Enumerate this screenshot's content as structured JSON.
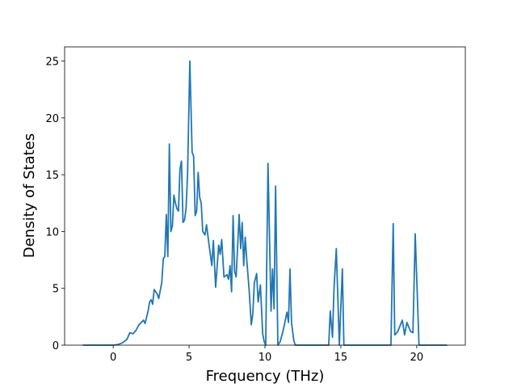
{
  "chart_data": {
    "type": "line",
    "x_label": "Frequency (THz)",
    "y_label": "Density of States",
    "x": [
      -2,
      0,
      0.3,
      0.6,
      0.9,
      1.1,
      1.3,
      1.5,
      1.7,
      2.0,
      2.1,
      2.3,
      2.4,
      2.5,
      2.6,
      2.7,
      2.9,
      3.0,
      3.2,
      3.3,
      3.4,
      3.5,
      3.6,
      3.7,
      3.8,
      3.9,
      4.0,
      4.1,
      4.2,
      4.3,
      4.4,
      4.5,
      4.6,
      4.7,
      4.8,
      4.9,
      5.05,
      5.2,
      5.3,
      5.4,
      5.5,
      5.6,
      5.7,
      5.8,
      5.9,
      6.05,
      6.15,
      6.3,
      6.5,
      6.6,
      6.75,
      6.95,
      7.05,
      7.15,
      7.3,
      7.5,
      7.6,
      7.7,
      7.8,
      7.9,
      8.0,
      8.1,
      8.3,
      8.4,
      8.5,
      8.6,
      8.7,
      8.8,
      8.95,
      9.1,
      9.2,
      9.3,
      9.45,
      9.55,
      9.7,
      9.85,
      9.95,
      10.05,
      10.2,
      10.4,
      10.5,
      10.6,
      10.7,
      10.85,
      11.0,
      11.2,
      11.45,
      11.55,
      11.65,
      11.75,
      11.9,
      12.0,
      14.2,
      14.3,
      14.45,
      14.55,
      14.7,
      14.9,
      15.1,
      15.2,
      18.3,
      18.45,
      18.55,
      18.75,
      19.05,
      19.2,
      19.35,
      19.6,
      19.75,
      19.9,
      20.15,
      22
    ],
    "values": [
      0,
      0,
      0.05,
      0.2,
      0.5,
      1.1,
      1.0,
      1.3,
      1.8,
      2.2,
      1.9,
      3.0,
      3.8,
      4.0,
      3.6,
      4.9,
      4.5,
      4.1,
      5.5,
      7.6,
      7.8,
      11.5,
      7.8,
      17.7,
      10.0,
      10.5,
      13.2,
      12.5,
      12.0,
      11.8,
      15.5,
      16.2,
      10.8,
      11.0,
      12.0,
      15.0,
      25.0,
      17.0,
      16.6,
      11.4,
      11.8,
      15.2,
      13.0,
      12.5,
      10.0,
      9.7,
      10.6,
      9.0,
      7.0,
      9.2,
      5.1,
      8.8,
      8.0,
      9.3,
      6.0,
      6.2,
      5.8,
      7.0,
      4.7,
      11.4,
      6.5,
      6.0,
      11.5,
      8.5,
      10.8,
      7.0,
      9.5,
      7.5,
      5.0,
      1.8,
      2.8,
      5.5,
      6.3,
      3.8,
      5.3,
      1.0,
      0.3,
      0,
      16.0,
      3.0,
      6.7,
      3.2,
      14.0,
      0,
      0.3,
      1.3,
      2.9,
      2.0,
      6.7,
      2.0,
      0.4,
      0,
      0,
      3.0,
      0.7,
      5.0,
      8.5,
      0,
      6.7,
      0,
      0,
      10.7,
      0.9,
      1.2,
      2.2,
      0.9,
      2.0,
      1.2,
      1.1,
      9.8,
      0,
      0
    ],
    "color": "#1f77b4",
    "xlim": [
      -3.2,
      23.2
    ],
    "xticks": [
      0,
      5,
      10,
      15,
      20
    ],
    "ylim": [
      0,
      26.25
    ],
    "yticks": [
      0,
      5,
      10,
      15,
      20,
      25
    ]
  }
}
